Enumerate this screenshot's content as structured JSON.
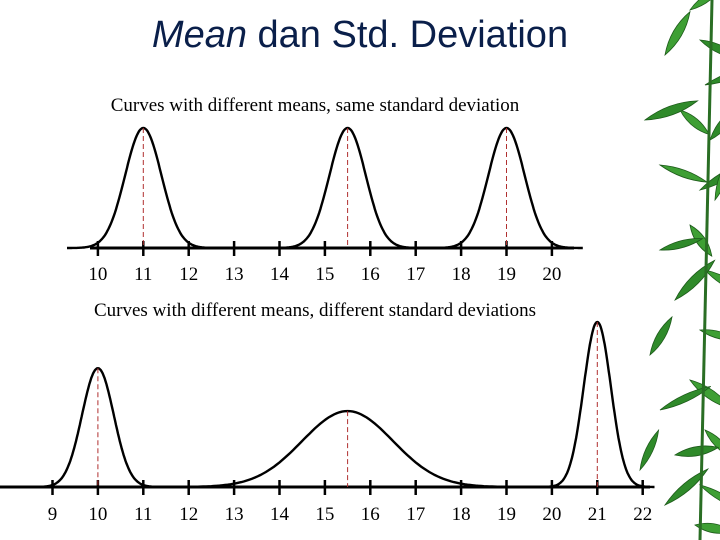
{
  "title": {
    "italic": "Mean",
    "rest": " dan Std. Deviation"
  },
  "captions": {
    "top": "Curves with different means, same standard deviation",
    "bottom": "Curves with different means, different standard deviations"
  },
  "top_axis": {
    "labels": [
      "10",
      "11",
      "12",
      "13",
      "14",
      "15",
      "16",
      "17",
      "18",
      "19",
      "20"
    ]
  },
  "bottom_axis": {
    "labels": [
      "9",
      "10",
      "11",
      "12",
      "13",
      "14",
      "15",
      "16",
      "17",
      "18",
      "19",
      "20",
      "21",
      "22"
    ]
  },
  "top_curves": [
    {
      "mean": 11.0,
      "sd": 0.4
    },
    {
      "mean": 15.5,
      "sd": 0.4
    },
    {
      "mean": 19.0,
      "sd": 0.4
    }
  ],
  "bottom_curves": [
    {
      "mean": 10.0,
      "sd": 0.35,
      "relative_height": 0.72
    },
    {
      "mean": 15.5,
      "sd": 1.0,
      "relative_height": 0.46
    },
    {
      "mean": 21.0,
      "sd": 0.3,
      "relative_height": 1.0
    }
  ],
  "colors": {
    "title": "#0a1f4a",
    "curve": "#000000",
    "mean_line": "#b03030",
    "bamboo": "#2f8a2a"
  },
  "decoration": "bamboo-leaves"
}
